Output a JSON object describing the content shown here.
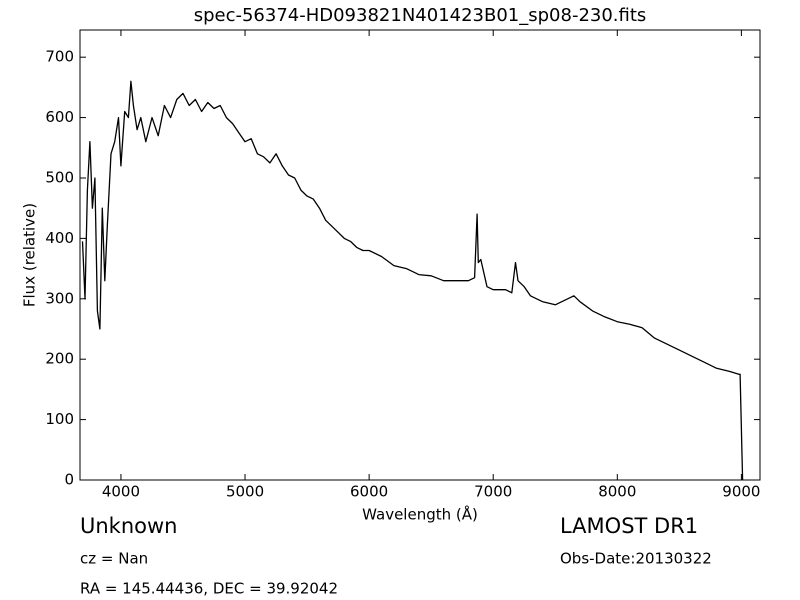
{
  "chart_data": {
    "type": "line",
    "title": "spec-56374-HD093821N401423B01_sp08-230.fits",
    "x_label": "Wavelength (Å)",
    "y_label": "Flux (relative)",
    "xlim": [
      3670,
      9150
    ],
    "ylim": [
      0,
      745
    ],
    "xticks": [
      4000,
      5000,
      6000,
      7000,
      8000,
      9000
    ],
    "yticks": [
      0,
      100,
      200,
      300,
      400,
      500,
      600,
      700
    ],
    "color": "#000000",
    "x": [
      3690,
      3710,
      3730,
      3750,
      3770,
      3790,
      3810,
      3830,
      3850,
      3870,
      3890,
      3920,
      3950,
      3980,
      4000,
      4030,
      4060,
      4080,
      4100,
      4130,
      4160,
      4200,
      4250,
      4300,
      4350,
      4400,
      4450,
      4500,
      4550,
      4600,
      4650,
      4700,
      4750,
      4800,
      4850,
      4900,
      4950,
      5000,
      5050,
      5100,
      5150,
      5200,
      5250,
      5300,
      5350,
      5400,
      5450,
      5500,
      5550,
      5600,
      5650,
      5700,
      5750,
      5800,
      5850,
      5900,
      5950,
      6000,
      6100,
      6200,
      6300,
      6400,
      6500,
      6600,
      6700,
      6800,
      6850,
      6870,
      6880,
      6900,
      6950,
      7000,
      7100,
      7150,
      7180,
      7200,
      7250,
      7300,
      7400,
      7500,
      7600,
      7650,
      7700,
      7800,
      7900,
      8000,
      8100,
      8200,
      8300,
      8400,
      8500,
      8600,
      8700,
      8800,
      8900,
      8980,
      8990,
      9010
    ],
    "values": [
      395,
      300,
      480,
      560,
      450,
      500,
      280,
      250,
      450,
      330,
      420,
      540,
      560,
      600,
      520,
      610,
      600,
      660,
      620,
      580,
      600,
      560,
      600,
      570,
      620,
      600,
      630,
      640,
      620,
      630,
      610,
      625,
      615,
      620,
      600,
      590,
      575,
      560,
      565,
      540,
      535,
      525,
      540,
      520,
      505,
      500,
      480,
      470,
      465,
      450,
      430,
      420,
      410,
      400,
      395,
      385,
      380,
      380,
      370,
      355,
      350,
      340,
      338,
      330,
      330,
      330,
      335,
      440,
      360,
      365,
      320,
      315,
      315,
      310,
      360,
      330,
      320,
      305,
      295,
      290,
      300,
      305,
      295,
      280,
      270,
      262,
      258,
      252,
      235,
      225,
      215,
      205,
      195,
      185,
      180,
      175,
      175,
      0
    ]
  },
  "annotations": {
    "object": "Unknown",
    "cz": "cz = Nan",
    "coords": "RA = 145.44436, DEC = 39.92042",
    "survey": "LAMOST DR1",
    "date": "Obs-Date:20130322"
  }
}
